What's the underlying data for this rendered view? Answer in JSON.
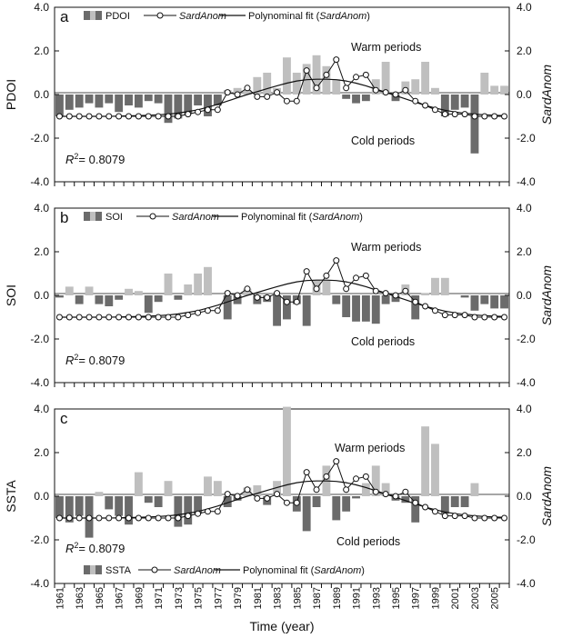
{
  "chart_data": [
    {
      "type": "bar",
      "panel_letter": "a",
      "index_name": "PDOI",
      "ylabel": "PDOI",
      "y2label": "SardAnom",
      "ylim": [
        -4.0,
        4.0
      ],
      "y2lim": [
        -4.0,
        4.0
      ],
      "yticks": [
        "4.0",
        "2.0",
        "0.0",
        "-2.0",
        "-4.0"
      ],
      "y2ticks": [
        "4.0",
        "2.0",
        "0.0",
        "-2.0",
        "-4.0"
      ],
      "legend": {
        "index": "PDOI",
        "anom": "SardAnom",
        "fit_prefix": "Polynominal fit (",
        "fit_var": "SardAnom",
        "fit_suffix": ")"
      },
      "annotations": {
        "warm": "Warm periods",
        "cold": "Cold periods",
        "r2_label": "R",
        "r2_sup": "2",
        "r2_value": "= 0.8079"
      },
      "index_values": [
        -1.0,
        -0.7,
        -0.6,
        -0.4,
        -0.6,
        -0.4,
        -0.8,
        -0.5,
        -0.6,
        -0.3,
        -0.4,
        -1.3,
        -1.1,
        -0.9,
        -0.5,
        -1.0,
        -0.5,
        0.2,
        0.3,
        0.2,
        0.8,
        1.0,
        0.3,
        1.7,
        1.0,
        1.4,
        1.8,
        1.3,
        0.7,
        -0.2,
        -0.4,
        -0.3,
        0.7,
        1.5,
        -0.3,
        0.6,
        0.7,
        1.5,
        0.3,
        -1.0,
        -0.7,
        -0.6,
        -2.7,
        1.0,
        0.4,
        0.4
      ]
    },
    {
      "type": "bar",
      "panel_letter": "b",
      "index_name": "SOI",
      "ylabel": "SOI",
      "y2label": "SardAnom",
      "ylim": [
        -4.0,
        4.0
      ],
      "y2lim": [
        -4.0,
        4.0
      ],
      "yticks": [
        "4.0",
        "2.0",
        "0.0",
        "-2.0",
        "-4.0"
      ],
      "y2ticks": [
        "4.0",
        "2.0",
        "0.0",
        "-2.0",
        "-4.0"
      ],
      "legend": {
        "index": "SOI",
        "anom": "SardAnom",
        "fit_prefix": "Polynominal fit (",
        "fit_var": "SardAnom",
        "fit_suffix": ")"
      },
      "annotations": {
        "warm": "Warm periods",
        "cold": "Cold periods",
        "r2_label": "R",
        "r2_sup": "2",
        "r2_value": "= 0.8079"
      },
      "index_values": [
        -0.1,
        0.4,
        -0.4,
        0.4,
        -0.4,
        -0.5,
        -0.2,
        0.3,
        0.2,
        -0.8,
        -0.3,
        1.0,
        -0.2,
        0.5,
        1.0,
        1.3,
        0.0,
        -1.1,
        -0.4,
        0.3,
        -0.4,
        -0.3,
        -1.4,
        -1.1,
        -0.4,
        -1.4,
        0.7,
        0.7,
        -0.4,
        -1.0,
        -1.2,
        -1.2,
        -1.3,
        -0.4,
        -0.3,
        0.5,
        -1.1,
        0.1,
        0.8,
        0.8,
        0.0,
        -0.1,
        -0.7,
        -0.4,
        -0.6,
        -0.6
      ]
    },
    {
      "type": "bar",
      "panel_letter": "c",
      "index_name": "SSTA",
      "ylabel": "SSTA",
      "y2label": "SardAnom",
      "ylim": [
        -4.0,
        4.0
      ],
      "y2lim": [
        -4.0,
        4.0
      ],
      "yticks": [
        "4.0",
        "2.0",
        "0.0",
        "-2.0",
        "-4.0"
      ],
      "y2ticks": [
        "4.0",
        "2.0",
        "0.0",
        "-2.0",
        "-4.0"
      ],
      "legend": {
        "index": "SSTA",
        "anom": "SardAnom",
        "fit_prefix": "Polynominal fit (",
        "fit_var": "SardAnom",
        "fit_suffix": ")"
      },
      "annotations": {
        "warm": "Warm periods",
        "cold": "Cold periods",
        "r2_label": "R",
        "r2_sup": "2",
        "r2_value": "= 0.8079"
      },
      "index_values": [
        -1.0,
        -1.2,
        -0.9,
        -1.9,
        0.2,
        -0.6,
        -0.9,
        -1.3,
        1.1,
        -0.3,
        -0.5,
        0.7,
        -1.4,
        -1.3,
        -0.8,
        0.9,
        0.7,
        -0.5,
        -0.2,
        0.4,
        0.5,
        -0.4,
        0.7,
        4.1,
        -0.7,
        -1.6,
        -0.5,
        1.4,
        -1.1,
        -0.7,
        -0.1,
        0.6,
        1.4,
        0.6,
        -0.2,
        -0.3,
        -1.2,
        3.2,
        2.4,
        -0.8,
        -0.5,
        -0.5,
        0.6,
        0.0,
        0.0,
        0.0
      ]
    }
  ],
  "sard_anom": [
    -1.0,
    -1.0,
    -1.0,
    -1.0,
    -1.0,
    -1.0,
    -1.0,
    -1.0,
    -1.0,
    -1.0,
    -1.0,
    -1.0,
    -1.0,
    -0.9,
    -0.8,
    -0.7,
    -0.7,
    0.1,
    0.0,
    0.3,
    -0.1,
    -0.1,
    0.1,
    -0.3,
    -0.3,
    1.1,
    0.3,
    0.9,
    1.6,
    0.3,
    0.8,
    0.9,
    0.2,
    0.1,
    0.0,
    0.2,
    -0.3,
    -0.5,
    -0.7,
    -0.9,
    -0.9,
    -0.9,
    -1.0,
    -1.0,
    -1.0,
    -1.0
  ],
  "poly_fit": [
    -1.0,
    -1.0,
    -1.0,
    -1.0,
    -1.0,
    -1.0,
    -0.99,
    -0.98,
    -0.97,
    -0.95,
    -0.93,
    -0.9,
    -0.85,
    -0.78,
    -0.7,
    -0.58,
    -0.45,
    -0.3,
    -0.15,
    0.0,
    0.13,
    0.27,
    0.4,
    0.52,
    0.62,
    0.68,
    0.7,
    0.7,
    0.68,
    0.62,
    0.52,
    0.4,
    0.25,
    0.1,
    -0.05,
    -0.2,
    -0.35,
    -0.5,
    -0.62,
    -0.72,
    -0.8,
    -0.86,
    -0.9,
    -0.93,
    -0.95,
    -0.97
  ],
  "years_start": 1961,
  "years_end": 2006,
  "x_tick_labels": [
    "1961",
    "1963",
    "1965",
    "1967",
    "1969",
    "1971",
    "1973",
    "1975",
    "1977",
    "1979",
    "1981",
    "1983",
    "1985",
    "1987",
    "1989",
    "1991",
    "1993",
    "1995",
    "1997",
    "1999",
    "2001",
    "2003",
    "2005"
  ],
  "xlabel": "Time (year)",
  "colors": {
    "positive": "#bfbfbf",
    "negative": "#6b6b6b",
    "line": "#111111",
    "marker_fill": "#ffffff",
    "axis": "#111111"
  }
}
